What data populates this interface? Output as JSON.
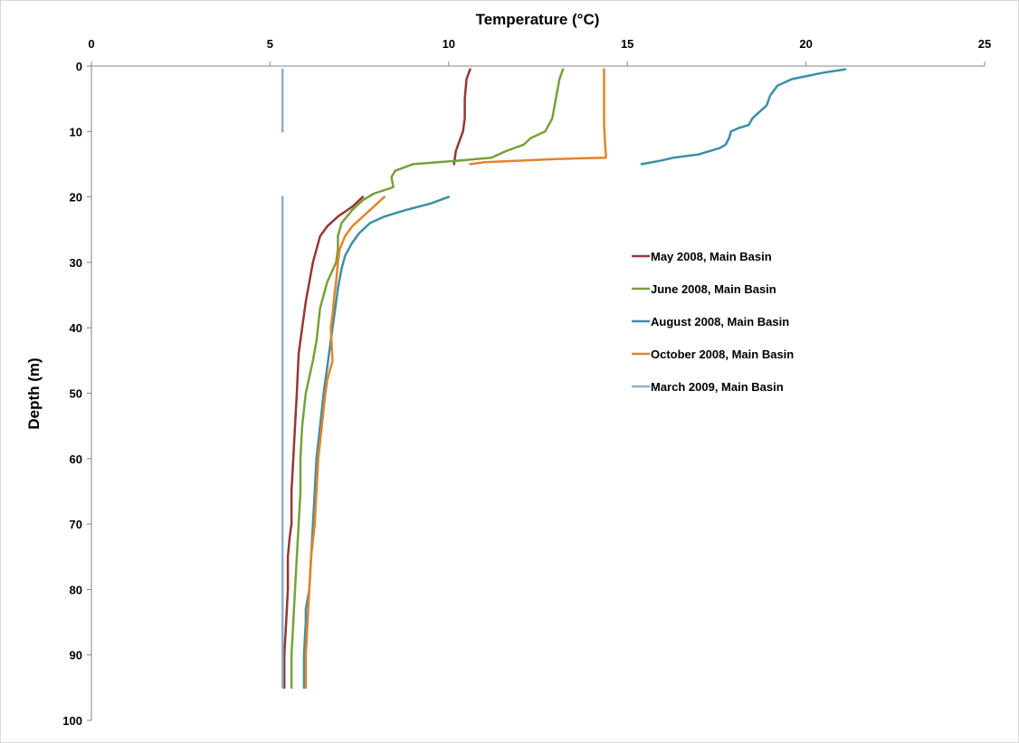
{
  "chart_data": {
    "type": "line",
    "title": "",
    "xlabel": "Temperature (°C)",
    "ylabel": "Depth (m)",
    "xlim": [
      0,
      25
    ],
    "ylim": [
      0,
      100
    ],
    "x_axis_position": "top",
    "y_axis_reversed": true,
    "x_ticks": [
      0,
      5,
      10,
      15,
      20,
      25
    ],
    "y_ticks": [
      0,
      10,
      20,
      30,
      40,
      50,
      60,
      70,
      80,
      90,
      100
    ],
    "grid": false,
    "legend_position": "right",
    "series": [
      {
        "name": "May 2008, Main Basin",
        "color": "#953735",
        "segments": [
          [
            [
              10.6,
              0.5
            ],
            [
              10.5,
              2
            ],
            [
              10.45,
              5
            ],
            [
              10.45,
              8
            ],
            [
              10.4,
              10
            ],
            [
              10.3,
              11.5
            ],
            [
              10.2,
              13
            ],
            [
              10.15,
              15
            ]
          ],
          [
            [
              7.6,
              20
            ],
            [
              7.3,
              21.5
            ],
            [
              6.9,
              23
            ],
            [
              6.6,
              24.5
            ],
            [
              6.4,
              26
            ],
            [
              6.3,
              28
            ],
            [
              6.2,
              30
            ],
            [
              6.1,
              33
            ],
            [
              6.0,
              36
            ],
            [
              5.9,
              40
            ],
            [
              5.8,
              44
            ],
            [
              5.75,
              50
            ],
            [
              5.7,
              55
            ],
            [
              5.65,
              60
            ],
            [
              5.6,
              65
            ],
            [
              5.6,
              70
            ],
            [
              5.55,
              72
            ],
            [
              5.5,
              75
            ],
            [
              5.5,
              80
            ],
            [
              5.45,
              85
            ],
            [
              5.4,
              90
            ],
            [
              5.4,
              95
            ]
          ]
        ]
      },
      {
        "name": "June 2008, Main Basin",
        "color": "#77a03b",
        "segments": [
          [
            [
              13.2,
              0.5
            ],
            [
              13.1,
              2
            ],
            [
              13.0,
              5
            ],
            [
              12.9,
              8
            ],
            [
              12.7,
              10
            ],
            [
              12.3,
              11
            ],
            [
              12.1,
              12
            ],
            [
              11.6,
              13
            ],
            [
              11.2,
              14
            ],
            [
              10.2,
              14.5
            ],
            [
              9.0,
              15
            ],
            [
              8.5,
              16
            ],
            [
              8.4,
              17
            ],
            [
              8.45,
              18.5
            ],
            [
              7.9,
              19.5
            ],
            [
              7.6,
              20.5
            ],
            [
              7.3,
              22
            ],
            [
              7.0,
              24
            ],
            [
              6.9,
              26
            ],
            [
              6.9,
              28
            ],
            [
              6.85,
              30
            ],
            [
              6.6,
              33
            ],
            [
              6.4,
              37
            ],
            [
              6.3,
              42
            ],
            [
              6.2,
              45
            ],
            [
              6.0,
              50
            ],
            [
              5.9,
              55
            ],
            [
              5.85,
              60
            ],
            [
              5.85,
              65
            ],
            [
              5.8,
              70
            ],
            [
              5.75,
              75
            ],
            [
              5.7,
              80
            ],
            [
              5.65,
              85
            ],
            [
              5.6,
              90
            ],
            [
              5.6,
              95
            ]
          ]
        ]
      },
      {
        "name": "August 2008, Main Basin",
        "color": "#3b8fa6",
        "segments": [
          [
            [
              21.1,
              0.5
            ],
            [
              20.5,
              1
            ],
            [
              19.6,
              2
            ],
            [
              19.2,
              3
            ],
            [
              19.0,
              4.5
            ],
            [
              18.9,
              6
            ],
            [
              18.7,
              7
            ],
            [
              18.5,
              8
            ],
            [
              18.4,
              9
            ],
            [
              18.1,
              9.5
            ],
            [
              17.9,
              10
            ],
            [
              17.85,
              11
            ],
            [
              17.75,
              12
            ],
            [
              17.6,
              12.5
            ],
            [
              17.0,
              13.5
            ],
            [
              16.3,
              14
            ],
            [
              15.9,
              14.5
            ],
            [
              15.4,
              15
            ]
          ],
          [
            [
              10.0,
              20
            ],
            [
              9.5,
              21
            ],
            [
              8.8,
              22
            ],
            [
              8.2,
              23
            ],
            [
              7.8,
              24
            ],
            [
              7.5,
              25.5
            ],
            [
              7.3,
              27
            ],
            [
              7.1,
              29
            ],
            [
              7.0,
              31
            ],
            [
              6.9,
              34
            ],
            [
              6.8,
              38
            ],
            [
              6.7,
              42
            ],
            [
              6.6,
              46
            ],
            [
              6.5,
              50
            ],
            [
              6.4,
              55
            ],
            [
              6.3,
              60
            ],
            [
              6.25,
              65
            ],
            [
              6.2,
              70
            ],
            [
              6.15,
              75
            ],
            [
              6.1,
              80
            ],
            [
              6.0,
              83
            ],
            [
              6.0,
              85
            ],
            [
              5.95,
              90
            ],
            [
              5.95,
              95
            ]
          ]
        ]
      },
      {
        "name": "October 2008, Main Basin",
        "color": "#e3832b",
        "segments": [
          [
            [
              14.35,
              0.5
            ],
            [
              14.35,
              3
            ],
            [
              14.35,
              6
            ],
            [
              14.35,
              9
            ],
            [
              14.38,
              12
            ],
            [
              14.4,
              13.5
            ],
            [
              14.4,
              14
            ],
            [
              13.0,
              14.2
            ],
            [
              11.0,
              14.7
            ],
            [
              10.6,
              15
            ]
          ],
          [
            [
              8.2,
              20
            ],
            [
              7.9,
              21.5
            ],
            [
              7.6,
              23
            ],
            [
              7.3,
              24.5
            ],
            [
              7.1,
              26
            ],
            [
              6.95,
              28
            ],
            [
              6.9,
              30
            ],
            [
              6.85,
              33
            ],
            [
              6.8,
              35
            ],
            [
              6.75,
              38
            ],
            [
              6.7,
              40
            ],
            [
              6.75,
              45
            ],
            [
              6.6,
              48
            ],
            [
              6.55,
              50
            ],
            [
              6.45,
              55
            ],
            [
              6.35,
              60
            ],
            [
              6.3,
              65
            ],
            [
              6.25,
              70
            ],
            [
              6.15,
              75
            ],
            [
              6.1,
              80
            ],
            [
              6.05,
              85
            ],
            [
              6.0,
              90
            ],
            [
              6.0,
              95
            ]
          ]
        ]
      },
      {
        "name": "March 2009, Main Basin",
        "color": "#8eaecb",
        "segments": [
          [
            [
              5.35,
              0.5
            ],
            [
              5.35,
              10
            ]
          ],
          [
            [
              5.35,
              20
            ],
            [
              5.35,
              95
            ]
          ]
        ]
      }
    ]
  }
}
